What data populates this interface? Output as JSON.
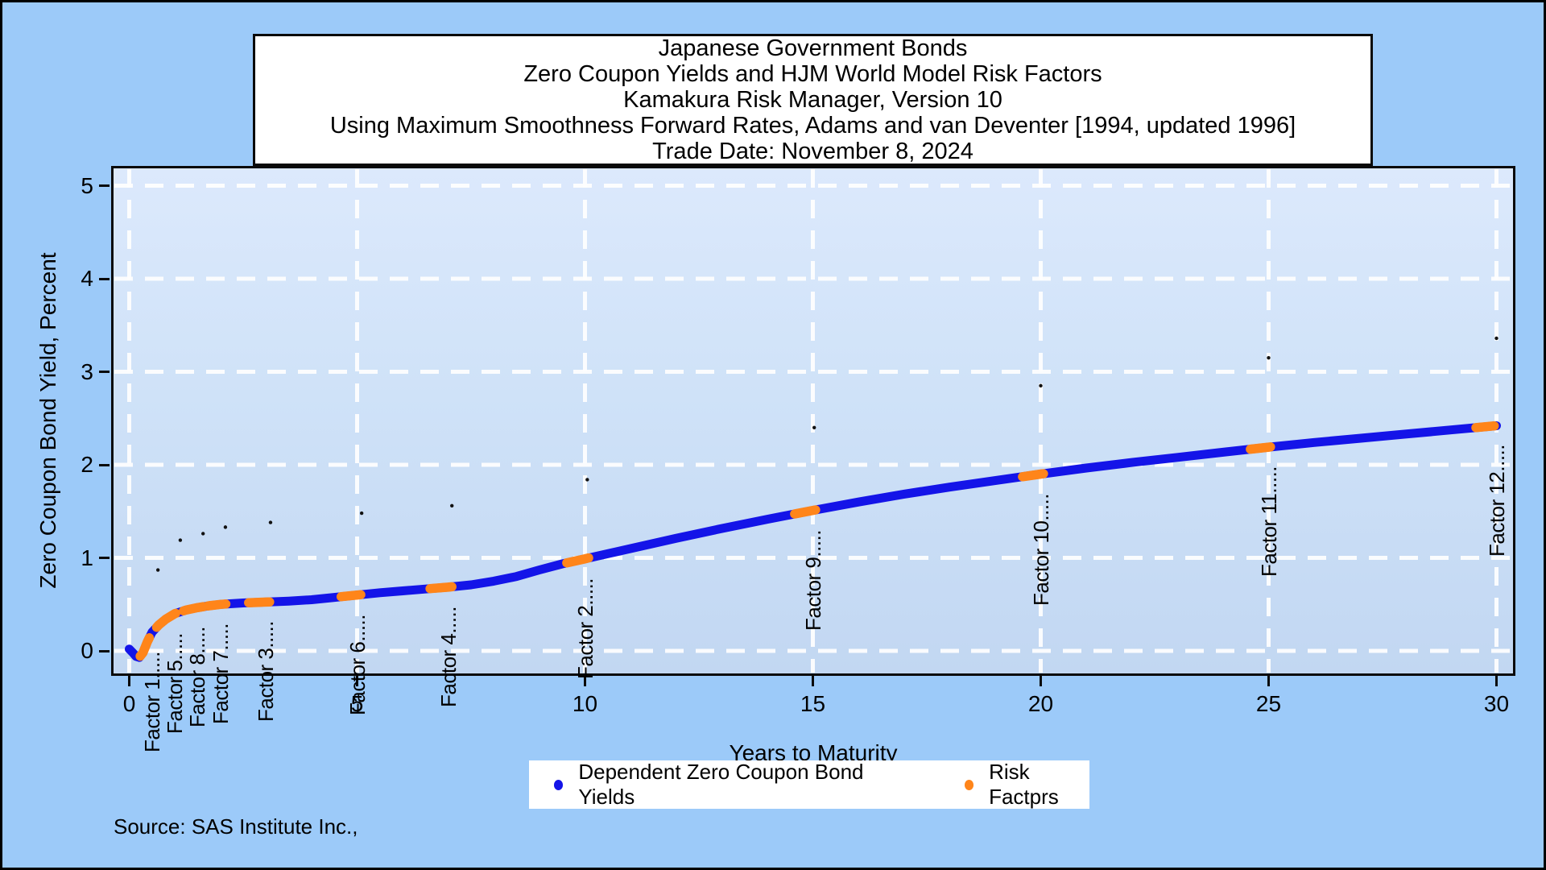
{
  "title": {
    "lines": [
      "Japanese Government Bonds",
      "Zero Coupon Yields and HJM World Model Risk Factors",
      "Kamakura Risk Manager, Version 10",
      "Using Maximum Smoothness Forward Rates, Adams and van Deventer [1994, updated 1996]",
      "Trade Date: November 8, 2024"
    ]
  },
  "axes": {
    "x_title": "Years to Maturity",
    "y_title": "Zero Coupon Bond Yield, Percent",
    "x_tick_labels": [
      "0",
      "5",
      "10",
      "15",
      "20",
      "25",
      "30"
    ],
    "y_tick_labels": [
      "0",
      "1",
      "2",
      "3",
      "4",
      "5"
    ]
  },
  "legend": {
    "items": [
      {
        "label": "Dependent Zero Coupon Bond Yields",
        "color": "#1414e8"
      },
      {
        "label": "Risk Factprs",
        "color": "#ff851a"
      }
    ]
  },
  "source": "Source: SAS Institute Inc.,",
  "colors": {
    "page_background": "#9ccaf9",
    "plot_wall_top": "#dce9fc",
    "plot_wall_bottom": "#c2d7f2",
    "grid": "#ffffff",
    "frame": "#0a0a0a",
    "yield_line": "#1414e8",
    "risk_factor": "#ff851a",
    "shift_dot": "#111111",
    "text": "#000000"
  },
  "chart_data": {
    "type": "line",
    "title": "Japanese Government Bonds - Zero Coupon Yields and HJM World Model Risk Factors",
    "xlabel": "Years to Maturity",
    "ylabel": "Zero Coupon Bond Yield, Percent",
    "xlim": [
      0,
      30
    ],
    "ylim": [
      0,
      5
    ],
    "x_ticks": [
      0,
      5,
      10,
      15,
      20,
      25,
      30
    ],
    "y_ticks": [
      0,
      1,
      2,
      3,
      4,
      5
    ],
    "grid": "white dashed, on",
    "legend_position": "bottom",
    "factor_label_suffix": ".....",
    "series": [
      {
        "name": "Dependent Zero Coupon Bond Yields",
        "type": "line",
        "points": [
          [
            0,
            0.02
          ],
          [
            0.08,
            -0.02
          ],
          [
            0.15,
            -0.06
          ],
          [
            0.22,
            -0.07
          ],
          [
            0.3,
            -0.02
          ],
          [
            0.4,
            0.1
          ],
          [
            0.5,
            0.2
          ],
          [
            0.65,
            0.28
          ],
          [
            0.8,
            0.34
          ],
          [
            1,
            0.4
          ],
          [
            1.25,
            0.44
          ],
          [
            1.5,
            0.465
          ],
          [
            1.75,
            0.485
          ],
          [
            2,
            0.5
          ],
          [
            2.5,
            0.515
          ],
          [
            3,
            0.525
          ],
          [
            3.5,
            0.535
          ],
          [
            4,
            0.55
          ],
          [
            4.5,
            0.575
          ],
          [
            5,
            0.6
          ],
          [
            5.5,
            0.625
          ],
          [
            6,
            0.645
          ],
          [
            6.5,
            0.665
          ],
          [
            7,
            0.685
          ],
          [
            7.5,
            0.71
          ],
          [
            8,
            0.75
          ],
          [
            8.5,
            0.8
          ],
          [
            9,
            0.87
          ],
          [
            9.5,
            0.935
          ],
          [
            10,
            0.99
          ],
          [
            11,
            1.1
          ],
          [
            12,
            1.21
          ],
          [
            13,
            1.315
          ],
          [
            14,
            1.415
          ],
          [
            15,
            1.51
          ],
          [
            16,
            1.6
          ],
          [
            17,
            1.685
          ],
          [
            18,
            1.76
          ],
          [
            19,
            1.83
          ],
          [
            20,
            1.9
          ],
          [
            21,
            1.965
          ],
          [
            22,
            2.025
          ],
          [
            23,
            2.08
          ],
          [
            24,
            2.135
          ],
          [
            25,
            2.19
          ],
          [
            26,
            2.24
          ],
          [
            27,
            2.285
          ],
          [
            28,
            2.33
          ],
          [
            29,
            2.375
          ],
          [
            30,
            2.42
          ]
        ]
      },
      {
        "name": "Risk Factprs",
        "type": "line-segments-overlay",
        "x_ranges": [
          [
            0.24,
            0.44
          ],
          [
            0.6,
            1.02
          ],
          [
            1.19,
            1.63
          ],
          [
            1.72,
            2.12
          ],
          [
            2.62,
            3.08
          ],
          [
            4.65,
            5.08
          ],
          [
            6.6,
            7.08
          ],
          [
            9.6,
            10.08
          ],
          [
            14.6,
            15.06
          ],
          [
            19.6,
            20.06
          ],
          [
            24.6,
            25.04
          ],
          [
            29.55,
            29.95
          ]
        ]
      },
      {
        "name": "shifted yield dots",
        "type": "scatter",
        "points": [
          [
            0.63,
            0.87
          ],
          [
            1.12,
            1.19
          ],
          [
            1.62,
            1.26
          ],
          [
            2.11,
            1.33
          ],
          [
            3.1,
            1.38
          ],
          [
            5.1,
            1.48
          ],
          [
            7.08,
            1.56
          ],
          [
            10.05,
            1.84
          ],
          [
            15.03,
            2.4
          ],
          [
            20,
            2.85
          ],
          [
            25,
            3.15
          ],
          [
            30,
            3.36
          ]
        ]
      }
    ],
    "factor_labels": [
      {
        "label": "Factor 1",
        "years": 0.5,
        "curve_yield": 0.2
      },
      {
        "label": "Factor 5",
        "years": 1,
        "curve_yield": 0.4
      },
      {
        "label": "Factor 8",
        "years": 1.5,
        "curve_yield": 0.465
      },
      {
        "label": "Factor 7",
        "years": 2,
        "curve_yield": 0.5
      },
      {
        "label": "Factor 3",
        "years": 3,
        "curve_yield": 0.525
      },
      {
        "label": "Factor 6",
        "years": 5,
        "curve_yield": 0.6
      },
      {
        "label": "Factor 4",
        "years": 7,
        "curve_yield": 0.685
      },
      {
        "label": "Factor 2",
        "years": 10,
        "curve_yield": 0.99
      },
      {
        "label": "Factor 9",
        "years": 15,
        "curve_yield": 1.51
      },
      {
        "label": "Factor 10",
        "years": 20,
        "curve_yield": 1.9
      },
      {
        "label": "Factor 11",
        "years": 25,
        "curve_yield": 2.19
      },
      {
        "label": "Factor 12",
        "years": 30,
        "curve_yield": 2.42
      }
    ]
  }
}
